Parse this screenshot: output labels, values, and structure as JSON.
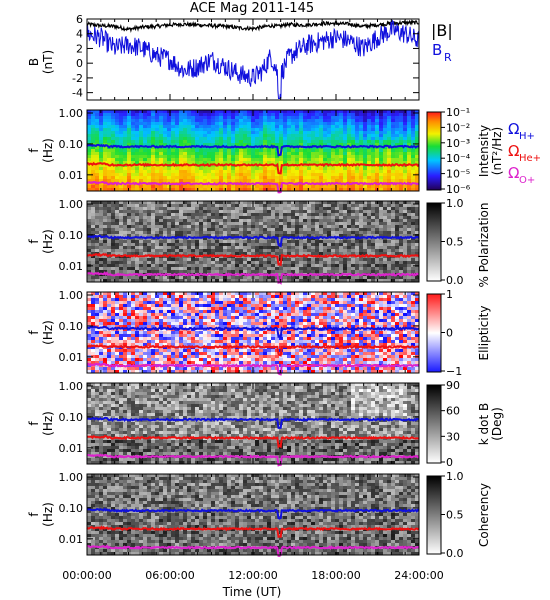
{
  "chart_data": {
    "type": "spectrogram",
    "title": "ACE Mag 2011-145",
    "xlabel": "Time (UT)",
    "xticks": [
      "00:00:00",
      "06:00:00",
      "12:00:00",
      "18:00:00",
      "24:00:00"
    ],
    "xlim_hours": [
      0,
      24
    ],
    "event_time_hours": 13.9,
    "panels": [
      {
        "id": "field",
        "type": "line",
        "ylabel": "B (nT)",
        "ylim": [
          -5,
          6
        ],
        "yticks": [
          "6",
          "4",
          "2",
          "0",
          "-2",
          "-4"
        ],
        "legend": [
          "|B|",
          "B",
          "R"
        ],
        "series": [
          {
            "name": "|B|",
            "color": "#000000",
            "x": [
              0,
              1,
              2,
              3,
              4,
              5,
              6,
              7,
              8,
              9,
              10,
              11,
              12,
              12.7,
              13.3,
              13.9,
              14.5,
              15,
              16,
              17,
              18,
              19,
              20,
              21,
              22,
              23,
              24
            ],
            "values": [
              5.3,
              5.1,
              5.0,
              4.6,
              4.9,
              5.0,
              5.2,
              5.3,
              5.2,
              5.1,
              5.0,
              4.8,
              4.7,
              4.9,
              5.1,
              5.0,
              5.3,
              5.2,
              5.2,
              5.4,
              5.4,
              5.3,
              5.0,
              5.2,
              5.4,
              5.5,
              5.5
            ]
          },
          {
            "name": "B_R",
            "color": "#1010dd",
            "x": [
              0,
              1,
              2,
              3,
              4,
              5,
              6,
              7,
              8,
              9,
              10,
              11,
              12,
              12.7,
              13.3,
              13.9,
              14.5,
              15,
              16,
              17,
              18,
              19,
              20,
              21,
              22,
              23,
              24
            ],
            "values": [
              4.0,
              3.5,
              2.0,
              2.5,
              2.0,
              1.0,
              0.5,
              -1.0,
              -0.5,
              0.5,
              -0.5,
              -1.5,
              -2.0,
              -1.0,
              1.0,
              -2.0,
              0.5,
              1.5,
              2.5,
              3.0,
              3.5,
              3.0,
              2.0,
              3.5,
              4.5,
              4.0,
              3.0
            ]
          }
        ]
      },
      {
        "id": "intensity",
        "type": "heatmap",
        "ylabel": "f (Hz)",
        "ylim": [
          0.003,
          1.0
        ],
        "yscale": "log",
        "yticks": [
          "1.00",
          "0.10",
          "0.01"
        ],
        "colorbar_label": "Intensity (nT²/Hz)",
        "colorbar_ticks": [
          "10⁻¹",
          "10⁻²",
          "10⁻³",
          "10⁻⁴",
          "10⁻⁵",
          "10⁻⁶"
        ],
        "legend": [
          {
            "label": "Ω",
            "sub": "H+",
            "color": "#1010dd"
          },
          {
            "label": "Ω",
            "sub": "He+",
            "color": "#ee1111"
          },
          {
            "label": "Ω",
            "sub": "O+",
            "color": "#dd22cc"
          }
        ]
      },
      {
        "id": "polarization",
        "type": "heatmap",
        "ylabel": "f (Hz)",
        "yscale": "log",
        "yticks": [
          "1.00",
          "0.10",
          "0.01"
        ],
        "colorbar_label": "% Polarization",
        "colorbar_ticks": [
          "1.0",
          "0.5",
          "0.0"
        ]
      },
      {
        "id": "ellipticity",
        "type": "heatmap",
        "ylabel": "f (Hz)",
        "yscale": "log",
        "yticks": [
          "1.00",
          "0.10",
          "0.01"
        ],
        "colorbar_label": "Ellipticity",
        "colorbar_ticks": [
          "1",
          "0",
          "−1"
        ]
      },
      {
        "id": "kdotb",
        "type": "heatmap",
        "ylabel": "f (Hz)",
        "yscale": "log",
        "yticks": [
          "1.00",
          "0.10",
          "0.01"
        ],
        "colorbar_label": "k dot B (Deg)",
        "colorbar_ticks": [
          "90",
          "60",
          "30",
          "0"
        ]
      },
      {
        "id": "coherency",
        "type": "heatmap",
        "ylabel": "f (Hz)",
        "yscale": "log",
        "yticks": [
          "1.00",
          "0.10",
          "0.01"
        ],
        "colorbar_label": "Coherency",
        "colorbar_ticks": [
          "1.0",
          "0.5",
          "0.0"
        ]
      }
    ],
    "gyrofrequencies": [
      {
        "name": "H+",
        "color": "#1010dd",
        "approx_hz": 0.082
      },
      {
        "name": "He+",
        "color": "#ee1111",
        "approx_hz": 0.021
      },
      {
        "name": "O+",
        "color": "#dd22cc",
        "approx_hz": 0.0052
      }
    ]
  },
  "labels": {
    "title": "ACE Mag 2011-145",
    "b_ylabel_main": "B",
    "b_ylabel_unit": "(nT)",
    "f_main": "f",
    "f_unit": "(Hz)",
    "legend_bmag": "|B|",
    "legend_br": "B",
    "legend_br_sub": "R",
    "omega": "Ω",
    "sub_h": "H+",
    "sub_he": "He+",
    "sub_o": "O+",
    "int_cb1": "Intensity",
    "int_cb2": "(nT²/Hz)",
    "pol_cb": "% Polarization",
    "ell_cb": "Ellipticity",
    "kdb_cb1": "k dot B",
    "kdb_cb2": "(Deg)",
    "coh_cb": "Coherency",
    "xlabel": "Time (UT)"
  }
}
